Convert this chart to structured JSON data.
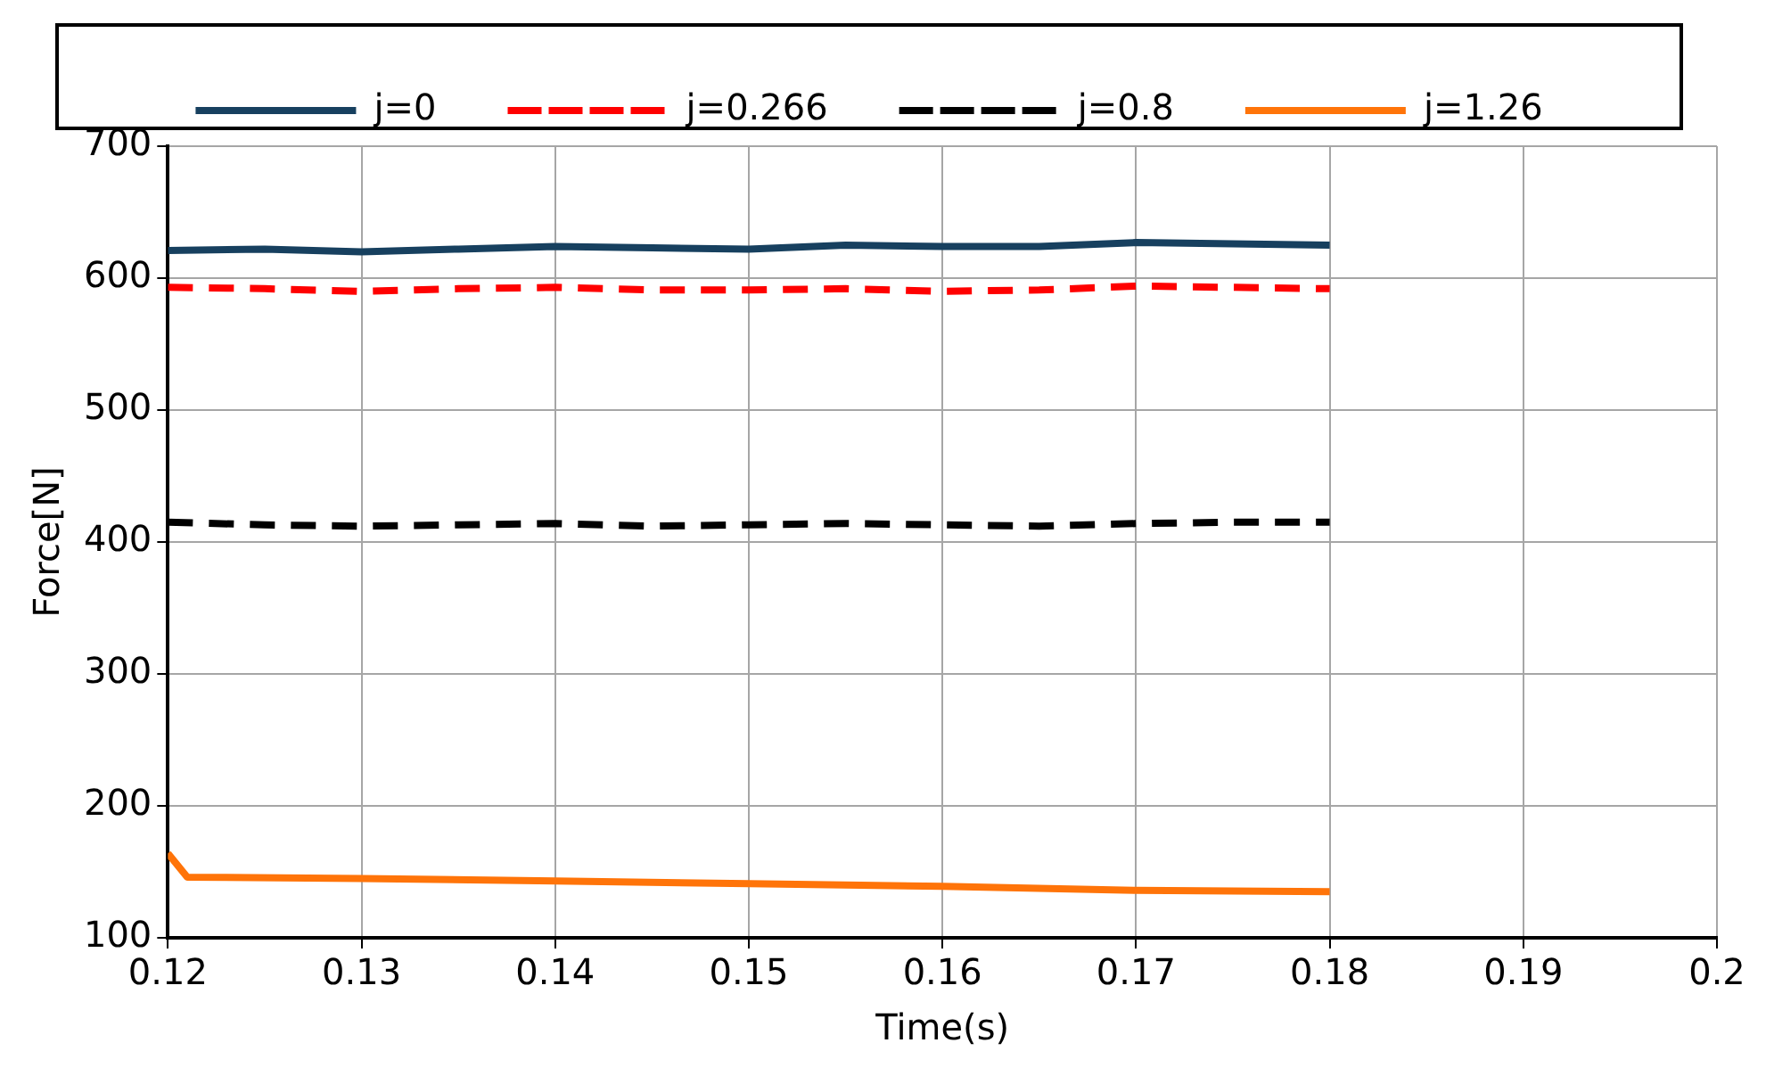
{
  "chart_data": {
    "type": "line",
    "xlabel": "Time(s)",
    "ylabel": "Force[N]",
    "xlim": [
      0.12,
      0.2
    ],
    "xticks": [
      0.12,
      0.13,
      0.14,
      0.15,
      0.16,
      0.17,
      0.18,
      0.19,
      0.2
    ],
    "ylim": [
      100,
      700
    ],
    "yticks": [
      100,
      200,
      300,
      400,
      500,
      600,
      700
    ],
    "grid": true,
    "legend": "top",
    "marker": "none",
    "x": [
      0.12,
      0.125,
      0.13,
      0.135,
      0.14,
      0.145,
      0.15,
      0.155,
      0.16,
      0.165,
      0.17,
      0.175,
      0.18
    ],
    "series": [
      {
        "name": "j=0",
        "color": "#17405f",
        "line_style": "solid",
        "values": [
          621,
          622,
          620,
          622,
          624,
          623,
          622,
          625,
          624,
          624,
          627,
          626,
          625
        ]
      },
      {
        "name": "j=0.266",
        "color": "#ff0000",
        "line_style": "dashed",
        "values": [
          593,
          592,
          590,
          592,
          593,
          591,
          591,
          592,
          590,
          591,
          594,
          593,
          592
        ]
      },
      {
        "name": "j=0.8",
        "color": "#000000",
        "line_style": "dashed",
        "values": [
          415,
          413,
          412,
          413,
          414,
          412,
          413,
          414,
          413,
          412,
          414,
          415,
          415
        ]
      },
      {
        "name": "j=1.26",
        "color": "#ff7409",
        "line_style": "solid",
        "x": [
          0.12,
          0.121,
          0.13,
          0.14,
          0.15,
          0.16,
          0.17,
          0.18
        ],
        "values": [
          164,
          146,
          145,
          143,
          141,
          139,
          136,
          135
        ]
      }
    ]
  }
}
